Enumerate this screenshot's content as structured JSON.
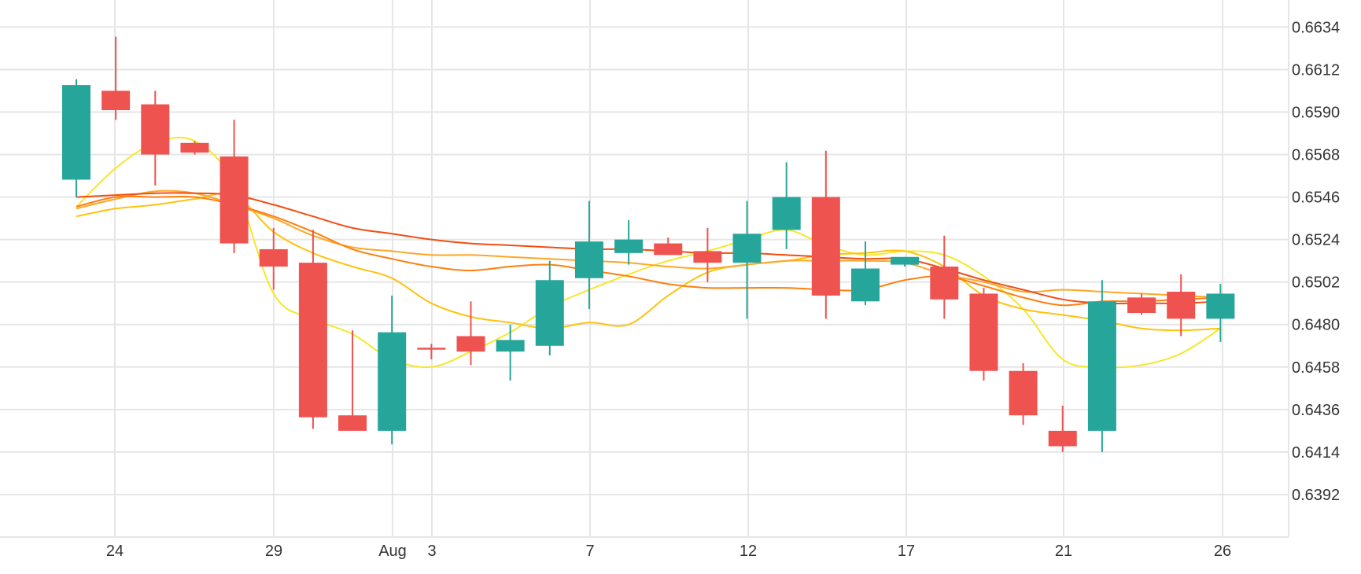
{
  "chart_data": {
    "type": "candlestick",
    "title": "",
    "xlabel": "",
    "ylabel": "",
    "ylim": [
      0.637,
      0.6648
    ],
    "y_ticks": [
      "0.6634",
      "0.6612",
      "0.6590",
      "0.6568",
      "0.6546",
      "0.6524",
      "0.6502",
      "0.6480",
      "0.6458",
      "0.6436",
      "0.6414",
      "0.6392"
    ],
    "x_ticks": [
      {
        "label": "24",
        "day": 1
      },
      {
        "label": "29",
        "day": 6
      },
      {
        "label": "Aug",
        "day": 9.75
      },
      {
        "label": "3",
        "day": 11
      },
      {
        "label": "7",
        "day": 15
      },
      {
        "label": "12",
        "day": 20
      },
      {
        "label": "17",
        "day": 25
      },
      {
        "label": "21",
        "day": 30
      },
      {
        "label": "26",
        "day": 35
      }
    ],
    "candles": [
      {
        "date": "Jul 23",
        "open": 0.6555,
        "high": 0.6607,
        "low": 0.6546,
        "close": 0.6604
      },
      {
        "date": "Jul 24",
        "open": 0.6601,
        "high": 0.6629,
        "low": 0.6586,
        "close": 0.6591
      },
      {
        "date": "Jul 25",
        "open": 0.6594,
        "high": 0.6601,
        "low": 0.6552,
        "close": 0.6568
      },
      {
        "date": "Jul 26",
        "open": 0.6574,
        "high": 0.6575,
        "low": 0.6568,
        "close": 0.6569
      },
      {
        "date": "Jul 27",
        "open": 0.6567,
        "high": 0.6586,
        "low": 0.6517,
        "close": 0.6522
      },
      {
        "date": "Jul 30",
        "open": 0.6519,
        "high": 0.653,
        "low": 0.6498,
        "close": 0.651
      },
      {
        "date": "Jul 31",
        "open": 0.6512,
        "high": 0.6529,
        "low": 0.6426,
        "close": 0.6432
      },
      {
        "date": "Aug 1",
        "open": 0.6433,
        "high": 0.6477,
        "low": 0.6426,
        "close": 0.6425
      },
      {
        "date": "Aug 2",
        "open": 0.6425,
        "high": 0.6495,
        "low": 0.6418,
        "close": 0.6476
      },
      {
        "date": "Aug 3",
        "open": 0.6468,
        "high": 0.647,
        "low": 0.6462,
        "close": 0.6467
      },
      {
        "date": "Aug 6",
        "open": 0.6474,
        "high": 0.6492,
        "low": 0.6459,
        "close": 0.6466
      },
      {
        "date": "Aug 7",
        "open": 0.6466,
        "high": 0.648,
        "low": 0.6451,
        "close": 0.6472
      },
      {
        "date": "Aug 8",
        "open": 0.6469,
        "high": 0.6513,
        "low": 0.6464,
        "close": 0.6503
      },
      {
        "date": "Aug 9",
        "open": 0.6504,
        "high": 0.6544,
        "low": 0.6488,
        "close": 0.6523
      },
      {
        "date": "Aug 10",
        "open": 0.6517,
        "high": 0.6534,
        "low": 0.6511,
        "close": 0.6524
      },
      {
        "date": "Aug 13",
        "open": 0.6522,
        "high": 0.6525,
        "low": 0.6516,
        "close": 0.6516
      },
      {
        "date": "Aug 14",
        "open": 0.6518,
        "high": 0.653,
        "low": 0.6502,
        "close": 0.6512
      },
      {
        "date": "Aug 15",
        "open": 0.6512,
        "high": 0.6544,
        "low": 0.6483,
        "close": 0.6527
      },
      {
        "date": "Aug 16",
        "open": 0.6529,
        "high": 0.6564,
        "low": 0.6519,
        "close": 0.6546
      },
      {
        "date": "Aug 17",
        "open": 0.6546,
        "high": 0.657,
        "low": 0.6483,
        "close": 0.6495
      },
      {
        "date": "Aug 20",
        "open": 0.6492,
        "high": 0.6523,
        "low": 0.649,
        "close": 0.6509
      },
      {
        "date": "Aug 21",
        "open": 0.6511,
        "high": 0.6515,
        "low": 0.651,
        "close": 0.6515
      },
      {
        "date": "Aug 22",
        "open": 0.651,
        "high": 0.6526,
        "low": 0.6483,
        "close": 0.6493
      },
      {
        "date": "Aug 23",
        "open": 0.6496,
        "high": 0.6499,
        "low": 0.6451,
        "close": 0.6456
      },
      {
        "date": "Aug 24",
        "open": 0.6456,
        "high": 0.646,
        "low": 0.6428,
        "close": 0.6433
      },
      {
        "date": "Aug 27",
        "open": 0.6425,
        "high": 0.6438,
        "low": 0.6414,
        "close": 0.6417
      },
      {
        "date": "Aug 28",
        "open": 0.6425,
        "high": 0.6503,
        "low": 0.6414,
        "close": 0.6492
      },
      {
        "date": "Aug 29",
        "open": 0.6494,
        "high": 0.6496,
        "low": 0.6485,
        "close": 0.6486
      },
      {
        "date": "Aug 30",
        "open": 0.6497,
        "high": 0.6506,
        "low": 0.6474,
        "close": 0.6483
      },
      {
        "date": "Aug 31",
        "open": 0.6483,
        "high": 0.6501,
        "low": 0.6471,
        "close": 0.6496
      }
    ],
    "ma_lines": [
      {
        "color": "#f5e72a",
        "values": [
          0.6541,
          0.6561,
          0.6574,
          0.6575,
          0.6553,
          0.6496,
          0.6483,
          0.6475,
          0.6462,
          0.6458,
          0.6466,
          0.6476,
          0.6489,
          0.6498,
          0.6506,
          0.6513,
          0.6518,
          0.6524,
          0.6529,
          0.6521,
          0.6516,
          0.6518,
          0.6516,
          0.6505,
          0.6488,
          0.6462,
          0.6458,
          0.6459,
          0.6465,
          0.6478
        ]
      },
      {
        "color": "#ffc20e",
        "values": [
          0.6536,
          0.654,
          0.6542,
          0.6545,
          0.6547,
          0.6528,
          0.6517,
          0.651,
          0.6504,
          0.6491,
          0.6484,
          0.6481,
          0.6478,
          0.6481,
          0.648,
          0.6495,
          0.6507,
          0.6511,
          0.6513,
          0.6516,
          0.6517,
          0.6518,
          0.651,
          0.6495,
          0.6488,
          0.6485,
          0.6482,
          0.6478,
          0.6477,
          0.6478
        ]
      },
      {
        "color": "#ffa726",
        "values": [
          0.654,
          0.6545,
          0.6549,
          0.6548,
          0.6542,
          0.6535,
          0.6526,
          0.652,
          0.6518,
          0.6516,
          0.6516,
          0.6515,
          0.6514,
          0.6513,
          0.6512,
          0.651,
          0.6509,
          0.6511,
          0.6513,
          0.6513,
          0.6513,
          0.6512,
          0.6506,
          0.6502,
          0.6497,
          0.6498,
          0.6497,
          0.6496,
          0.6495,
          0.6494
        ]
      },
      {
        "color": "#ff7f0e",
        "values": [
          0.6541,
          0.6546,
          0.6546,
          0.6546,
          0.6542,
          0.6536,
          0.6528,
          0.6519,
          0.6514,
          0.651,
          0.6508,
          0.651,
          0.6511,
          0.6508,
          0.6505,
          0.6501,
          0.6499,
          0.6499,
          0.6499,
          0.6498,
          0.6498,
          0.6503,
          0.6505,
          0.65,
          0.6494,
          0.649,
          0.6492,
          0.6492,
          0.6493,
          0.6494
        ]
      },
      {
        "color": "#f44d12",
        "values": [
          0.6546,
          0.6547,
          0.6548,
          0.6548,
          0.6547,
          0.6542,
          0.6536,
          0.653,
          0.6527,
          0.6524,
          0.6522,
          0.6521,
          0.652,
          0.6519,
          0.6519,
          0.6518,
          0.6517,
          0.6517,
          0.6516,
          0.6515,
          0.6514,
          0.6514,
          0.6509,
          0.6503,
          0.6498,
          0.6493,
          0.6491,
          0.6491,
          0.6491,
          0.6492
        ]
      }
    ],
    "colors": {
      "up": "#26a69a",
      "down": "#ef5350",
      "grid": "#e6e6e6",
      "text": "#333333",
      "background": "#ffffff"
    },
    "legend": "none",
    "grid": true
  }
}
